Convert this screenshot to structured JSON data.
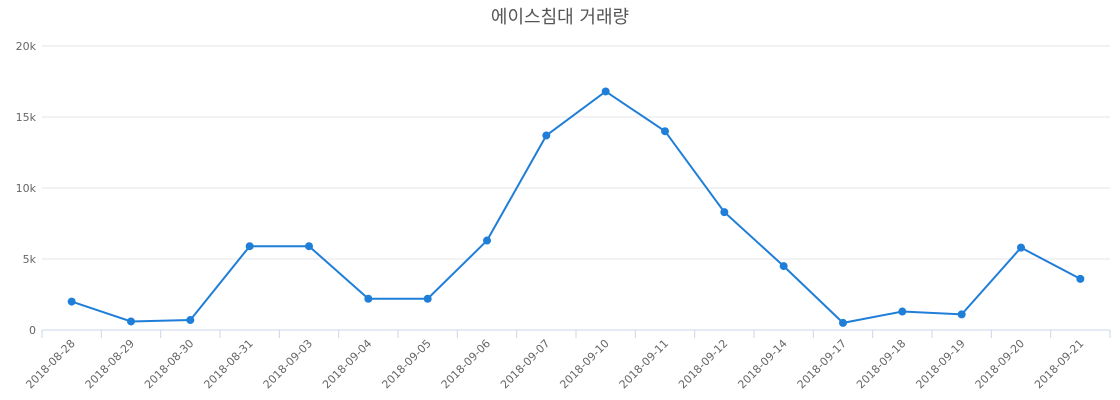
{
  "chart_data": {
    "type": "line",
    "title": "에이스침대 거래량",
    "categories": [
      "2018-08-28",
      "2018-08-29",
      "2018-08-30",
      "2018-08-31",
      "2018-09-03",
      "2018-09-04",
      "2018-09-05",
      "2018-09-06",
      "2018-09-07",
      "2018-09-10",
      "2018-09-11",
      "2018-09-12",
      "2018-09-14",
      "2018-09-17",
      "2018-09-18",
      "2018-09-19",
      "2018-09-20",
      "2018-09-21"
    ],
    "series": [
      {
        "color": "#1f7ed8",
        "values": [
          2000,
          600,
          700,
          5900,
          5900,
          2200,
          2200,
          6300,
          13700,
          16800,
          14000,
          8300,
          4500,
          500,
          1300,
          1100,
          5800,
          3600
        ]
      }
    ],
    "ylim": [
      0,
      20000
    ],
    "yticks": [
      0,
      {
        "value": 5000,
        "label": "5k"
      },
      {
        "value": 10000,
        "label": "10k"
      },
      {
        "value": 15000,
        "label": "15k"
      },
      {
        "value": 20000,
        "label": "20k"
      }
    ],
    "grid": true
  }
}
